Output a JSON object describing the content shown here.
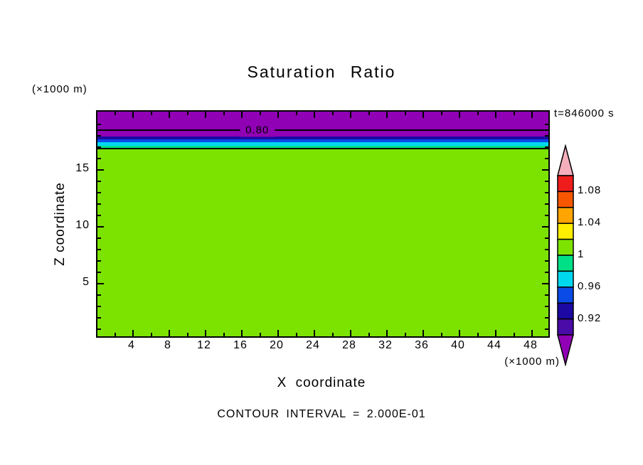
{
  "title": "Saturation Ratio",
  "timestamp": "t=846000 s",
  "footer_note": "CONTOUR INTERVAL = 2.000E-01",
  "x_axis": {
    "label": "X coordinate",
    "units": "(×1000 m)",
    "major_ticks": [
      4,
      8,
      12,
      16,
      20,
      24,
      28,
      32,
      36,
      40,
      44,
      48
    ],
    "minor_ticks": [
      2,
      6,
      10,
      14,
      18,
      22,
      26,
      30,
      34,
      38,
      42,
      46
    ]
  },
  "y_axis": {
    "label": "Z coordinate",
    "units": "(×1000 m)",
    "major_ticks": [
      5,
      10,
      15
    ],
    "minor_ticks": [
      1,
      2,
      3,
      4,
      6,
      7,
      8,
      9,
      11,
      12,
      13,
      14,
      16,
      17,
      18,
      19
    ]
  },
  "colorbar": {
    "over_color": "#F5AFBC",
    "under_color": "#9000B4",
    "blocks_top_to_bottom": [
      "#EF1C1C",
      "#F85700",
      "#FFA400",
      "#FFEE00",
      "#7CE300",
      "#00E087",
      "#00D8F0",
      "#0A4BE8",
      "#1C08A3",
      "#4A0AA8"
    ],
    "labels": [
      {
        "text": "1.08",
        "boundary": 1
      },
      {
        "text": "1.04",
        "boundary": 3
      },
      {
        "text": "1",
        "boundary": 5
      },
      {
        "text": "0.96",
        "boundary": 7
      },
      {
        "text": "0.92",
        "boundary": 9
      }
    ]
  },
  "chart_data": {
    "type": "heatmap",
    "subtype": "filled-contour",
    "title": "Saturation Ratio",
    "xlabel": "X coordinate (×1000 m)",
    "ylabel": "Z coordinate (×1000 m)",
    "xlim": [
      0,
      50
    ],
    "ylim": [
      0.4,
      20.1
    ],
    "time_label": "t=846000 s",
    "contour_interval": 0.2,
    "colorbar_tick_values": [
      1.08,
      1.04,
      1,
      0.96,
      0.92
    ],
    "colorbar_step": 0.02,
    "bands": [
      {
        "saturation_ratio": "< 0.92",
        "color": "#9000B4",
        "z_from": 17.95,
        "z_to": 20.1
      },
      {
        "saturation_ratio": "0.92-0.94",
        "color": "#1C08A3",
        "z_from": 17.7,
        "z_to": 17.95
      },
      {
        "saturation_ratio": "0.94-0.96",
        "color": "#0A4BE8",
        "z_from": 17.45,
        "z_to": 17.7
      },
      {
        "saturation_ratio": "0.96-0.98",
        "color": "#00D8F0",
        "z_from": 17.15,
        "z_to": 17.45
      },
      {
        "saturation_ratio": "0.98-1.00",
        "color": "#00E087",
        "z_from": 16.9,
        "z_to": 17.15
      },
      {
        "saturation_ratio": "1.00-1.02",
        "color": "#7CE300",
        "z_from": 0.4,
        "z_to": 16.9
      }
    ],
    "contour_lines": [
      {
        "value": 0.8,
        "z": 18.5,
        "label": "0.80",
        "label_x": 17.7,
        "label_bg": "#9000B4"
      },
      {
        "value": 1.0,
        "z": 16.9,
        "label": null
      }
    ]
  }
}
